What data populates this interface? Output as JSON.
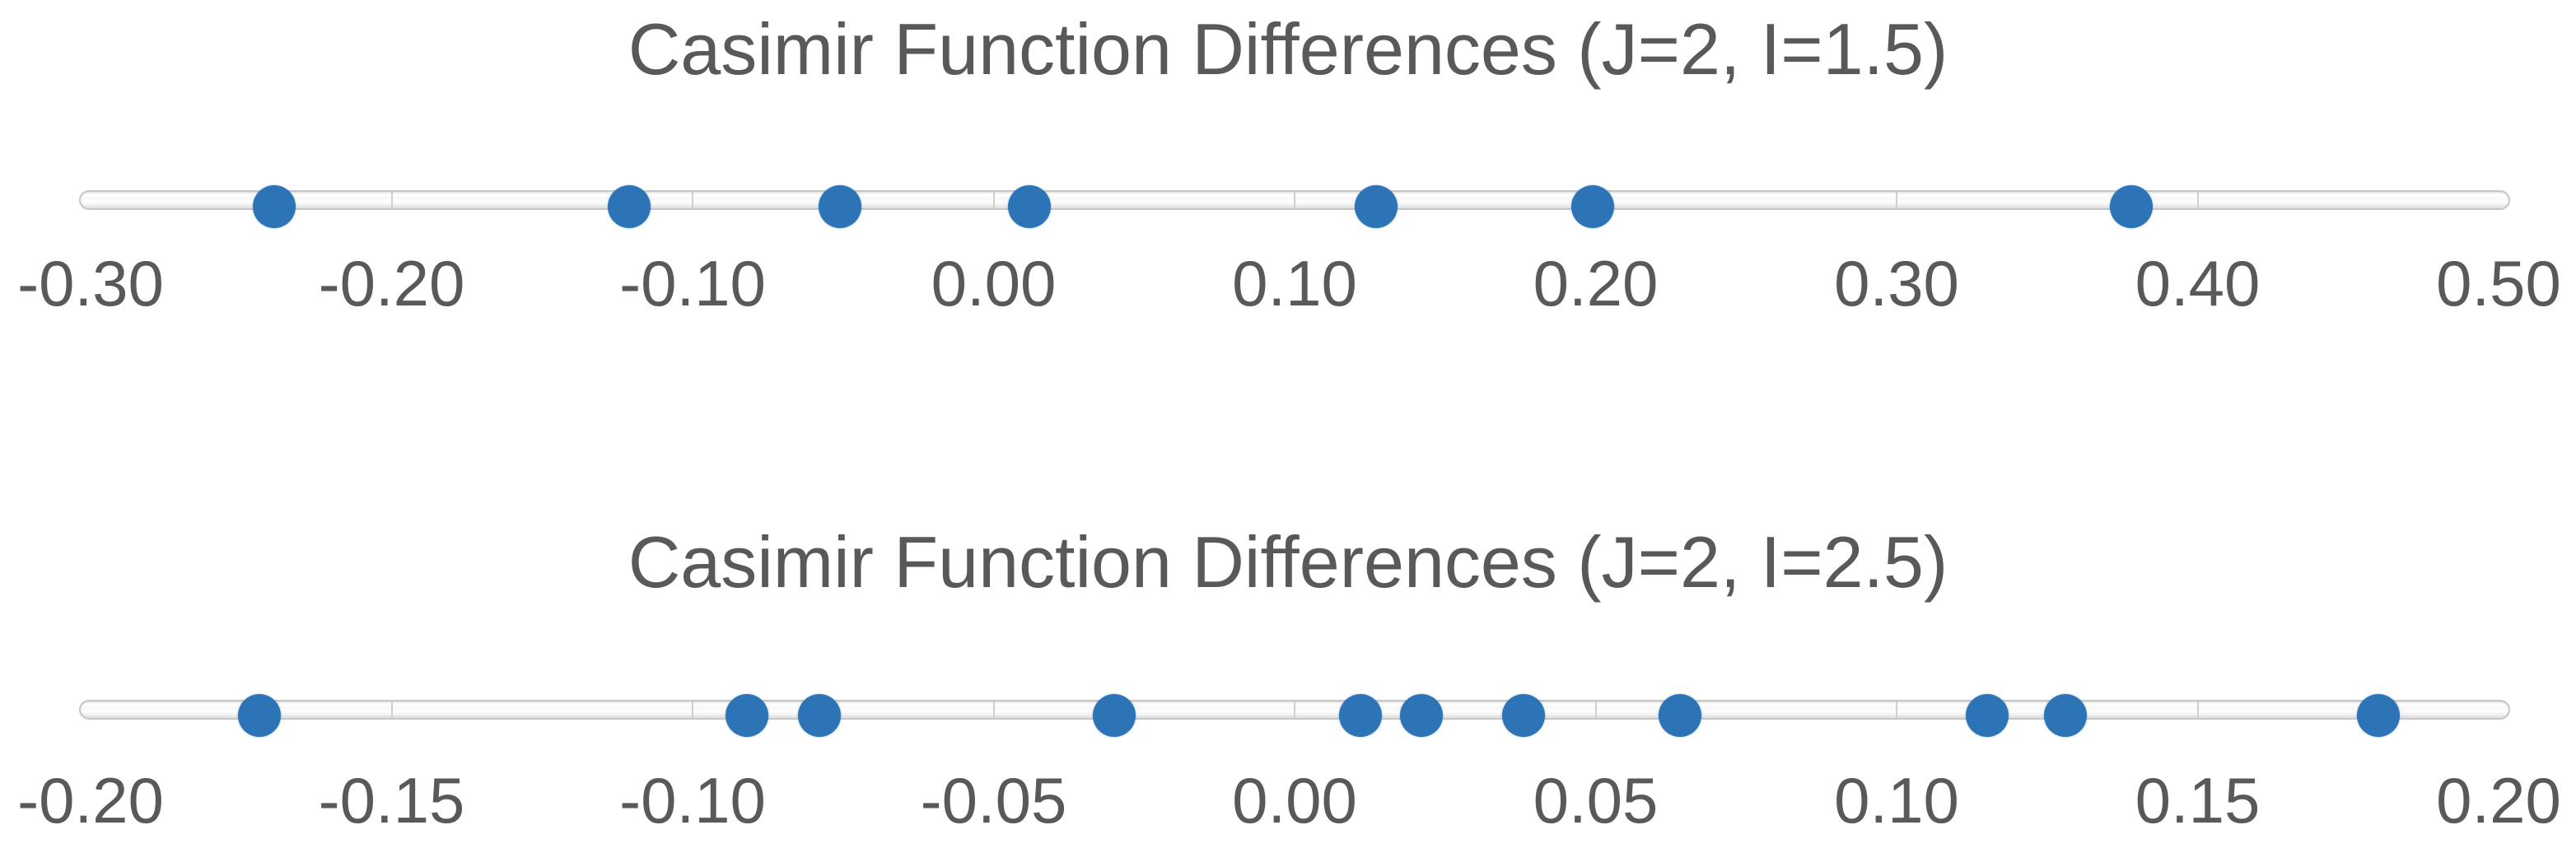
{
  "page": {
    "background": "#ffffff"
  },
  "colors": {
    "marker_blue": "#2D74B6",
    "text_gray": "#595959",
    "track_border_gray": "#c6c6c6",
    "tick_separator_gray": "#cfcfcf"
  },
  "chart_data": [
    {
      "type": "scatter",
      "title": "Casimir Function Differences (J=2, I=1.5)",
      "x": [
        -0.239,
        -0.121,
        -0.051,
        0.012,
        0.127,
        0.199,
        0.378
      ],
      "y": [
        0,
        0,
        0,
        0,
        0,
        0,
        0
      ],
      "xlim": [
        -0.3,
        0.5
      ],
      "xticks": [
        -0.3,
        -0.2,
        -0.1,
        0.0,
        0.1,
        0.2,
        0.3,
        0.4,
        0.5
      ],
      "xtick_labels": [
        "-0.30",
        "-0.20",
        "-0.10",
        "0.00",
        "0.10",
        "0.20",
        "0.30",
        "0.40",
        "0.50"
      ],
      "xlabel": "",
      "ylabel": "",
      "grid": false,
      "legend": "none",
      "layout": "horizontal number line, dots on axis track",
      "marker_color": "#2D74B6"
    },
    {
      "type": "scatter",
      "title": "Casimir Function Differences (J=2, I=2.5)",
      "x": [
        -0.172,
        -0.091,
        -0.079,
        -0.03,
        0.011,
        0.021,
        0.038,
        0.064,
        0.115,
        0.128,
        0.18
      ],
      "y": [
        0,
        0,
        0,
        0,
        0,
        0,
        0,
        0,
        0,
        0,
        0
      ],
      "xlim": [
        -0.2,
        0.2
      ],
      "xticks": [
        -0.2,
        -0.15,
        -0.1,
        -0.05,
        0.0,
        0.05,
        0.1,
        0.15,
        0.2
      ],
      "xtick_labels": [
        "-0.20",
        "-0.15",
        "-0.10",
        "-0.05",
        "0.00",
        "0.05",
        "0.10",
        "0.15",
        "0.20"
      ],
      "xlabel": "",
      "ylabel": "",
      "grid": false,
      "legend": "none",
      "layout": "horizontal number line, dots on axis track",
      "marker_color": "#2D74B6"
    }
  ]
}
